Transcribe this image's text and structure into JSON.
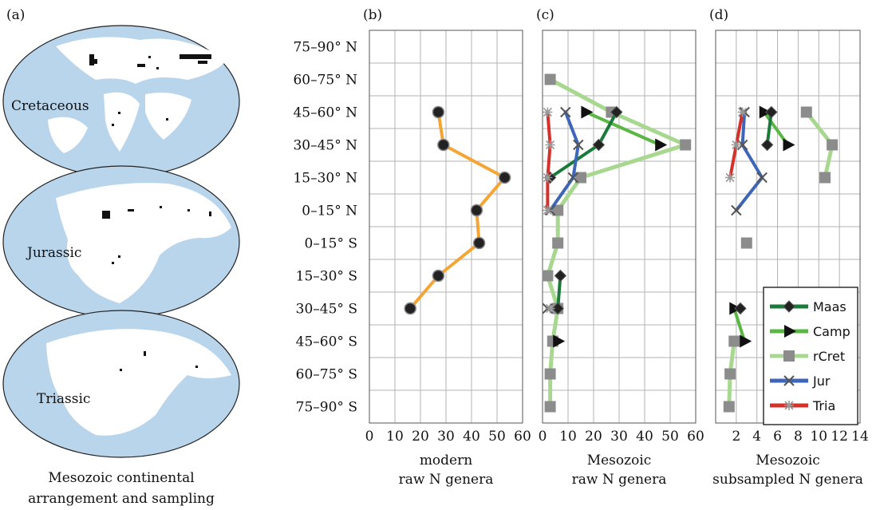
{
  "panel_a": {
    "label": "(a)",
    "maps": [
      {
        "label": "Cretaceous"
      },
      {
        "label": "Jurassic"
      },
      {
        "label": "Triassic"
      }
    ],
    "caption_line1": "Mesozoic continental",
    "caption_line2": "arrangement and sampling"
  },
  "lat_bands": [
    "75–90° N",
    "60–75° N",
    "45–60° N",
    "30–45° N",
    "15–30° N",
    "0–15° N",
    "0–15° S",
    "15–30° S",
    "30–45° S",
    "45–60° S",
    "60–75° S",
    "75–90° S"
  ],
  "colors": {
    "modern": "#f5a534",
    "maas": "#1a7a3a",
    "camp": "#5ab743",
    "rcret": "#a8d890",
    "jur": "#3d66b8",
    "tria": "#d6302a",
    "ocean": "#b9d5ec",
    "grid": "#b3b3b3"
  },
  "legend": {
    "entries": [
      {
        "key": "maas",
        "label": "Maas"
      },
      {
        "key": "camp",
        "label": "Camp"
      },
      {
        "key": "rcret",
        "label": "rCret"
      },
      {
        "key": "jur",
        "label": "Jur"
      },
      {
        "key": "tria",
        "label": "Tria"
      }
    ]
  },
  "chart_data": [
    {
      "type": "line",
      "panel": "(b)",
      "xlabel_line1": "modern",
      "xlabel_line2": "raw N genera",
      "xlim": [
        0,
        60
      ],
      "xticks": [
        0,
        10,
        20,
        30,
        40,
        50,
        60
      ],
      "grid": true,
      "series": [
        {
          "key": "modern",
          "points": [
            {
              "band": "45–60° N",
              "x": 27
            },
            {
              "band": "30–45° N",
              "x": 29
            },
            {
              "band": "15–30° N",
              "x": 53
            },
            {
              "band": "0–15° N",
              "x": 42
            },
            {
              "band": "0–15° S",
              "x": 43
            },
            {
              "band": "15–30° S",
              "x": 27
            },
            {
              "band": "30–45° S",
              "x": 16
            }
          ]
        }
      ]
    },
    {
      "type": "line",
      "panel": "(c)",
      "xlabel_line1": "Mesozoic",
      "xlabel_line2": "raw N genera",
      "xlim": [
        0,
        60
      ],
      "xticks": [
        0,
        10,
        20,
        30,
        40,
        50,
        60
      ],
      "grid": true,
      "series": [
        {
          "key": "rcret",
          "points": [
            {
              "band": "60–75° N",
              "x": 3
            },
            {
              "band": "45–60° N",
              "x": 27
            },
            {
              "band": "30–45° N",
              "x": 56
            },
            {
              "band": "15–30° N",
              "x": 15
            },
            {
              "band": "0–15° N",
              "x": 6
            },
            {
              "band": "0–15° S",
              "x": 6
            },
            {
              "band": "15–30° S",
              "x": 2
            },
            {
              "band": "30–45° S",
              "x": 6
            },
            {
              "band": "45–60° S",
              "x": 4
            },
            {
              "band": "60–75° S",
              "x": 3
            },
            {
              "band": "75–90° S",
              "x": 3
            }
          ]
        },
        {
          "key": "camp",
          "points": [
            {
              "band": "45–60° N",
              "x": 17
            },
            {
              "band": "30–45° N",
              "x": 46
            },
            {
              "band": "45–60° S",
              "x": 6
            }
          ]
        },
        {
          "key": "maas",
          "points": [
            {
              "band": "45–60° N",
              "x": 29
            },
            {
              "band": "30–45° N",
              "x": 22
            },
            {
              "band": "15–30° N",
              "x": 3
            },
            {
              "band": "15–30° S",
              "x": 7
            },
            {
              "band": "30–45° S",
              "x": 6
            }
          ]
        },
        {
          "key": "jur",
          "points": [
            {
              "band": "45–60° N",
              "x": 9
            },
            {
              "band": "30–45° N",
              "x": 14
            },
            {
              "band": "15–30° N",
              "x": 12
            },
            {
              "band": "0–15° N",
              "x": 3
            },
            {
              "band": "30–45° S",
              "x": 2
            }
          ]
        },
        {
          "key": "tria",
          "points": [
            {
              "band": "45–60° N",
              "x": 2
            },
            {
              "band": "30–45° N",
              "x": 3
            },
            {
              "band": "15–30° N",
              "x": 2
            },
            {
              "band": "0–15° N",
              "x": 2
            },
            {
              "band": "30–45° S",
              "x": 3
            }
          ]
        }
      ]
    },
    {
      "type": "line",
      "panel": "(d)",
      "xlabel_line1": "Mesozoic",
      "xlabel_line2": "subsampled N genera",
      "xlim": [
        0,
        14
      ],
      "xticks": [
        2,
        4,
        6,
        8,
        10,
        12,
        14
      ],
      "grid": true,
      "legend_position": "bottom-right",
      "series": [
        {
          "key": "rcret",
          "points": [
            {
              "band": "45–60° N",
              "x": 8.8
            },
            {
              "band": "30–45° N",
              "x": 11.3
            },
            {
              "band": "15–30° N",
              "x": 10.6
            },
            {
              "band": "0–15° S",
              "x": 3
            },
            {
              "band": "45–60° S",
              "x": 1.8
            },
            {
              "band": "60–75° S",
              "x": 1.4
            },
            {
              "band": "75–90° S",
              "x": 1.3
            }
          ]
        },
        {
          "key": "camp",
          "points": [
            {
              "band": "45–60° N",
              "x": 4.7
            },
            {
              "band": "30–45° N",
              "x": 7
            },
            {
              "band": "30–45° S",
              "x": 1.8
            },
            {
              "band": "45–60° S",
              "x": 2.8
            }
          ]
        },
        {
          "key": "maas",
          "points": [
            {
              "band": "45–60° N",
              "x": 5.4
            },
            {
              "band": "30–45° N",
              "x": 5
            },
            {
              "band": "30–45° S",
              "x": 2.4
            }
          ]
        },
        {
          "key": "jur",
          "points": [
            {
              "band": "45–60° N",
              "x": 2.8
            },
            {
              "band": "30–45° N",
              "x": 2.6
            },
            {
              "band": "15–30° N",
              "x": 4.5
            },
            {
              "band": "0–15° N",
              "x": 2
            }
          ]
        },
        {
          "key": "tria",
          "points": [
            {
              "band": "45–60° N",
              "x": 2.6
            },
            {
              "band": "30–45° N",
              "x": 2
            },
            {
              "band": "15–30° N",
              "x": 1.4
            }
          ]
        }
      ]
    }
  ]
}
